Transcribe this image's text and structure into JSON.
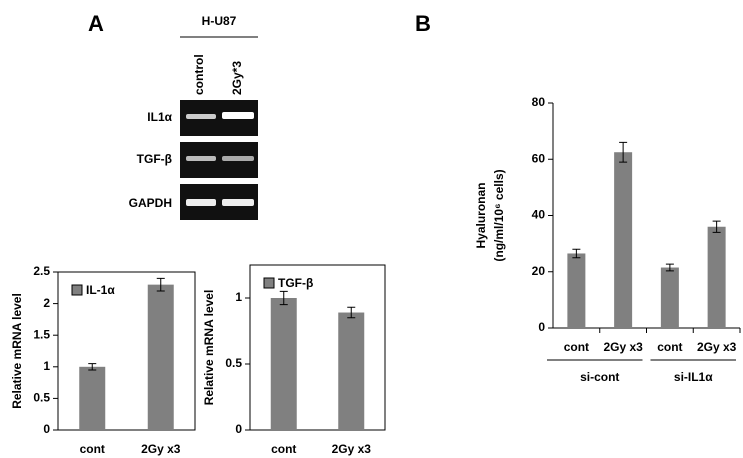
{
  "panel_labels": [
    "A",
    "B"
  ],
  "gel": {
    "cell_line": "H-U87",
    "lanes": [
      "control",
      "2Gy*3"
    ],
    "genes": [
      "IL1α",
      "TGF-β",
      "GAPDH"
    ]
  },
  "chart_data": [
    {
      "type": "bar",
      "ylabel": "Relative mRNA level",
      "categories": [
        "cont",
        "2Gy x3"
      ],
      "series": [
        {
          "name": "IL-1α",
          "color": "#808080",
          "values": [
            1.0,
            2.3
          ],
          "errors": [
            0.05,
            0.1
          ]
        }
      ],
      "ylim": [
        0,
        2.5
      ],
      "yticks": [
        0,
        0.5,
        1,
        1.5,
        2,
        2.5
      ],
      "legend": "top-left"
    },
    {
      "type": "bar",
      "ylabel": "Relative mRNA level",
      "categories": [
        "cont",
        "2Gy x3"
      ],
      "series": [
        {
          "name": "TGF-β",
          "color": "#808080",
          "values": [
            1.0,
            0.89
          ],
          "errors": [
            0.05,
            0.04
          ]
        }
      ],
      "ylim": [
        0,
        1.25
      ],
      "yticks": [
        0,
        0.5,
        1
      ],
      "legend": "top-left"
    },
    {
      "type": "bar",
      "ylabel": [
        "Hyaluronan",
        "(ng/ml/10⁶ cells)"
      ],
      "categories": [
        "cont",
        "2Gy x3",
        "cont",
        "2Gy x3"
      ],
      "groups": [
        "si-cont",
        "si-IL1α"
      ],
      "series": [
        {
          "color": "#808080",
          "values": [
            26.5,
            62.5,
            21.5,
            36
          ],
          "errors": [
            1.5,
            3.5,
            1.2,
            2
          ]
        }
      ],
      "ylim": [
        0,
        80
      ],
      "yticks": [
        0,
        20,
        40,
        60,
        80
      ]
    }
  ]
}
